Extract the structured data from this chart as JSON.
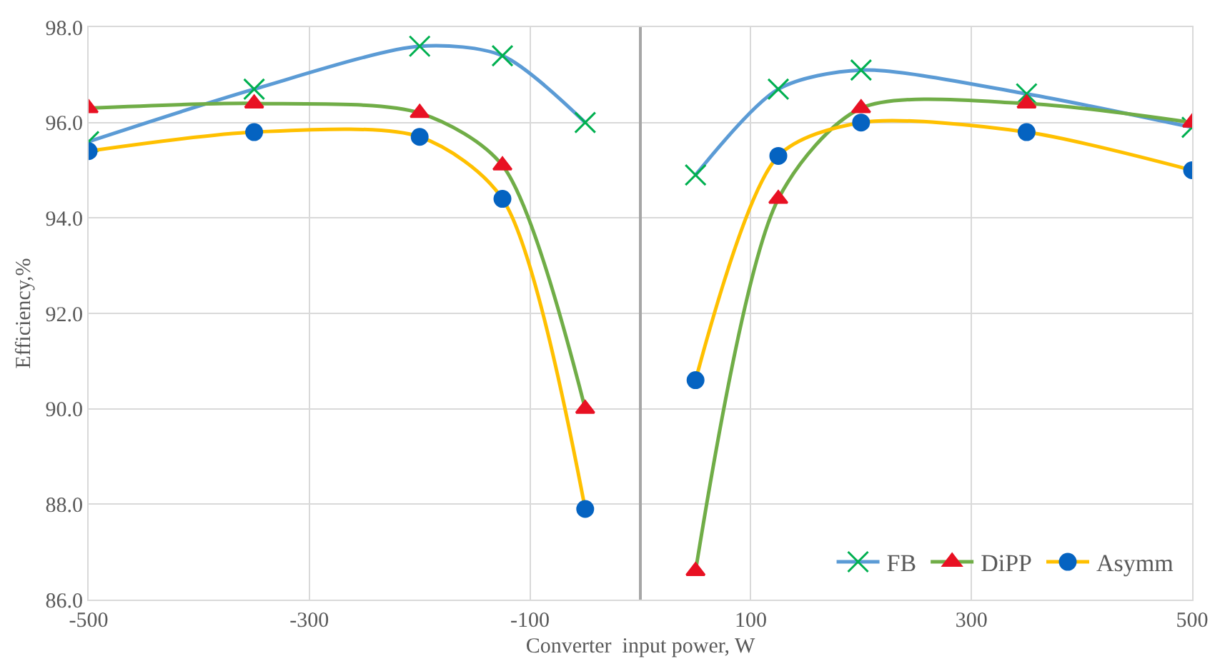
{
  "chart_data": {
    "type": "line",
    "xlabel": "Converter  input power, W",
    "ylabel": "Efficiency,%",
    "x": [
      -500,
      -350,
      -200,
      -125,
      -50,
      0,
      50,
      125,
      200,
      350,
      500
    ],
    "xlim": [
      -500,
      500
    ],
    "xticks": [
      -500,
      -300,
      -100,
      100,
      300,
      500
    ],
    "ylim": [
      86,
      98
    ],
    "yticks": [
      {
        "value": 86,
        "label": "86.0"
      },
      {
        "value": 88,
        "label": "88.0"
      },
      {
        "value": 90,
        "label": "90.0"
      },
      {
        "value": 92,
        "label": "92.0"
      },
      {
        "value": 94,
        "label": "94.0"
      },
      {
        "value": 96,
        "label": "96.0"
      },
      {
        "value": 98,
        "label": "98.0"
      }
    ],
    "grid": true,
    "legend": "bottom right",
    "line_style": "solid",
    "series": [
      {
        "name": "FB",
        "color": "#5b9bd5",
        "marker": "cross",
        "colors": [
          "#00b050",
          "#00b050",
          "#00b050",
          "#00b050",
          "#00b050",
          null,
          "#00b050",
          "#00b050",
          "#00b050",
          "#00b050",
          "#00b050"
        ],
        "values": [
          95.6,
          96.7,
          97.6,
          97.4,
          96.0,
          null,
          94.9,
          96.7,
          97.1,
          96.6,
          95.9
        ]
      },
      {
        "name": "DiPP",
        "color": "#70ad47",
        "marker": "triangle",
        "colors": [
          "#e81123",
          "#e81123",
          "#e81123",
          "#e81123",
          "#e81123",
          null,
          "#e81123",
          "#e81123",
          "#e81123",
          "#e81123",
          "#e81123"
        ],
        "values": [
          96.3,
          96.4,
          96.2,
          95.1,
          90.0,
          null,
          86.6,
          94.4,
          96.3,
          96.4,
          96.0
        ]
      },
      {
        "name": "Asymm",
        "color": "#ffc000",
        "marker": "circle",
        "colors": [
          "#0563c1",
          "#0563c1",
          "#0563c1",
          "#0563c1",
          "#0563c1",
          null,
          "#0563c1",
          "#0563c1",
          "#0563c1",
          "#0563c1",
          "#0563c1"
        ],
        "values": [
          95.4,
          95.8,
          95.7,
          94.4,
          87.9,
          null,
          90.6,
          95.3,
          96.0,
          95.8,
          95.0
        ]
      }
    ]
  }
}
